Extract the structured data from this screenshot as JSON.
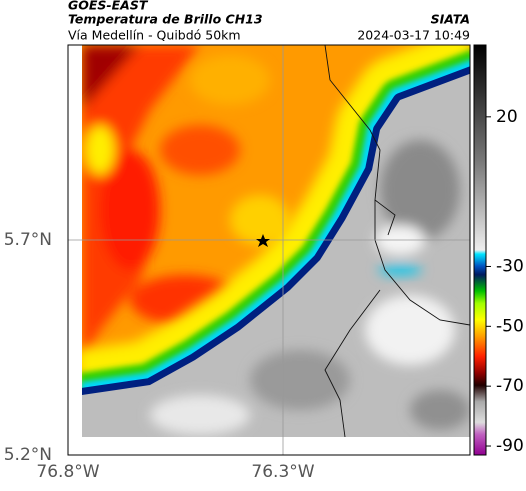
{
  "header": {
    "title": "GOES-EAST",
    "subtitle": "Temperatura de Brillo CH13",
    "region": "Vía Medellín - Quibdó 50km",
    "source": "SIATA",
    "datetime": "2024-03-17 10:49"
  },
  "map": {
    "lat_labels": [
      "5.7°N",
      "5.2°N"
    ],
    "lon_labels": [
      "76.8°W",
      "76.3°W"
    ]
  },
  "colorbar": {
    "range": [
      44,
      -93
    ],
    "ticks": [
      20,
      -30,
      -50,
      -70,
      -90
    ]
  }
}
